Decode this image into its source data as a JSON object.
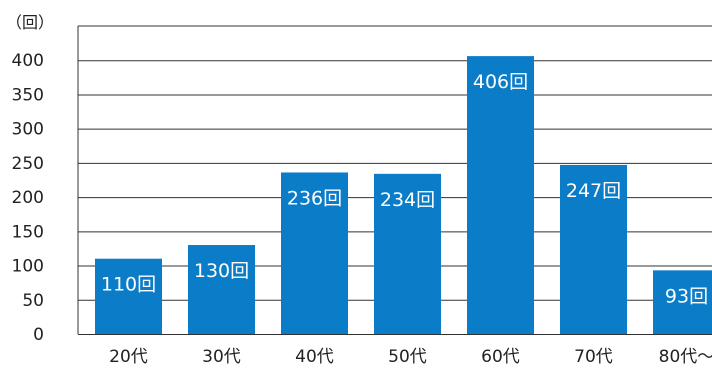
{
  "chart_data": {
    "type": "bar",
    "unit_label": "（回）",
    "categories": [
      "20代",
      "30代",
      "40代",
      "50代",
      "60代",
      "70代",
      "80代〜"
    ],
    "values": [
      110,
      130,
      236,
      234,
      406,
      247,
      93
    ],
    "data_labels": [
      "110回",
      "130回",
      "236回",
      "234回",
      "406回",
      "247回",
      "93回"
    ],
    "y_ticks": [
      0,
      50,
      100,
      150,
      200,
      250,
      300,
      350,
      400
    ],
    "ylim": [
      0,
      450
    ],
    "grid": true,
    "legend": "none",
    "bar_color": "#0a7cc8",
    "grid_color": "#333333"
  }
}
